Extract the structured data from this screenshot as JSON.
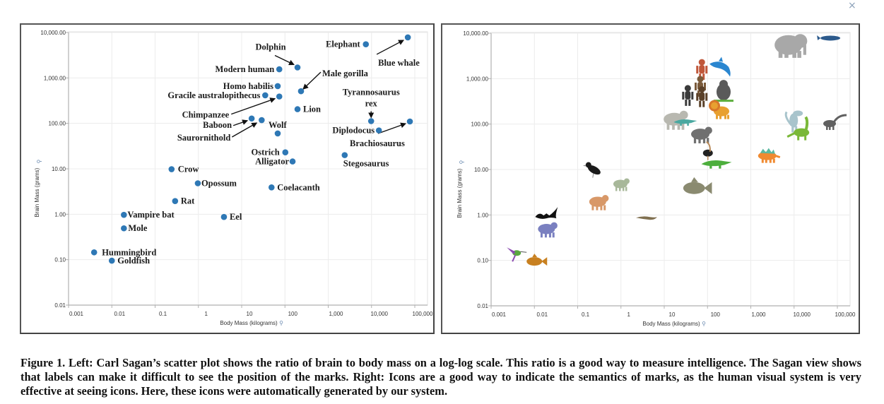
{
  "window": {
    "close_label": "×"
  },
  "caption": "Figure 1. Left: Carl Sagan’s scatter plot shows the ratio of brain to body mass on a log-log scale. This ratio is a good way to measure intelligence. The Sagan view shows that labels can make it difficult to see the position of the marks. Right: Icons are a good way to indicate the semantics of marks, as the human visual system is very effective at seeing icons. Here, these icons were automatically generated by our system.",
  "colors": {
    "point": "#2e78b5",
    "grid": "#ececec",
    "axis": "#b0b0b0",
    "frame": "#555555"
  },
  "chart_data": [
    {
      "type": "scatter",
      "panel": "left",
      "title": "",
      "xlabel": "Body Mass (kilograms)",
      "ylabel": "Brain Mass (grams)",
      "xscale": "log",
      "yscale": "log",
      "xlim": [
        0.001,
        150000
      ],
      "ylim": [
        0.01,
        10000
      ],
      "xticks": [
        0.001,
        0.01,
        0.1,
        1,
        10,
        100,
        1000,
        10000,
        100000
      ],
      "xtick_labels": [
        "0.001",
        "0.01",
        "0.1",
        "1",
        "10",
        "100",
        "1,000",
        "10,000",
        "100,000"
      ],
      "yticks": [
        0.01,
        0.1,
        1,
        10,
        100,
        1000,
        10000
      ],
      "ytick_labels": [
        "0.01",
        "0.10",
        "1.00",
        "10.00",
        "100.00",
        "1,000.00",
        "10,000.00"
      ],
      "grid": true,
      "points": [
        {
          "name": "Elephant",
          "x": 7400,
          "y": 5500
        },
        {
          "name": "Blue whale",
          "x": 69000,
          "y": 7800
        },
        {
          "name": "Dolphin",
          "x": 195,
          "y": 1700
        },
        {
          "name": "Modern human",
          "x": 74,
          "y": 1550
        },
        {
          "name": "Male gorilla",
          "x": 235,
          "y": 510
        },
        {
          "name": "Homo habilis",
          "x": 68,
          "y": 660
        },
        {
          "name": "Gracile australopithecus",
          "x": 35,
          "y": 415
        },
        {
          "name": "Chimpanzee",
          "x": 74,
          "y": 390
        },
        {
          "name": "Lion",
          "x": 195,
          "y": 205
        },
        {
          "name": "Baboon",
          "x": 17,
          "y": 128
        },
        {
          "name": "Saurornithold",
          "x": 29,
          "y": 118
        },
        {
          "name": "Wolf",
          "x": 68,
          "y": 60
        },
        {
          "name": "Tyrannosaurus rex",
          "x": 9800,
          "y": 112
        },
        {
          "name": "Diplodocus",
          "x": 14800,
          "y": 70
        },
        {
          "name": "Brachiosaurus",
          "x": 77000,
          "y": 110
        },
        {
          "name": "Ostrich",
          "x": 102,
          "y": 23
        },
        {
          "name": "Alligator",
          "x": 150,
          "y": 14.5
        },
        {
          "name": "Stegosaurus",
          "x": 2400,
          "y": 20
        },
        {
          "name": "Crow",
          "x": 0.24,
          "y": 9.8
        },
        {
          "name": "Opossum",
          "x": 0.97,
          "y": 4.8
        },
        {
          "name": "Coelacanth",
          "x": 49,
          "y": 3.9
        },
        {
          "name": "Rat",
          "x": 0.29,
          "y": 1.95
        },
        {
          "name": "Vampire bat",
          "x": 0.019,
          "y": 0.97
        },
        {
          "name": "Eel",
          "x": 3.9,
          "y": 0.87
        },
        {
          "name": "Mole",
          "x": 0.019,
          "y": 0.49
        },
        {
          "name": "Hummingbird",
          "x": 0.0039,
          "y": 0.145
        },
        {
          "name": "Goldfish",
          "x": 0.01,
          "y": 0.095
        }
      ],
      "labels": [
        {
          "text": "Elephant",
          "point": "Elephant"
        },
        {
          "text": "Blue whale",
          "point": "Blue whale",
          "arrow": true
        },
        {
          "text": "Dolphin",
          "point": "Dolphin",
          "arrow": true
        },
        {
          "text": "Modern human",
          "point": "Modern human"
        },
        {
          "text": "Male gorilla",
          "point": "Male gorilla",
          "arrow": true
        },
        {
          "text": "Homo habilis",
          "point": "Homo habilis"
        },
        {
          "text": "Gracile australopithecus",
          "point": "Gracile australopithecus"
        },
        {
          "text": "Chimpanzee",
          "point": "Chimpanzee",
          "arrow": true
        },
        {
          "text": "Baboon",
          "point": "Baboon",
          "arrow": true
        },
        {
          "text": "Saurornithold",
          "point": "Saurornithold",
          "arrow": true
        },
        {
          "text": "Lion",
          "point": "Lion"
        },
        {
          "text": "Wolf",
          "point": "Wolf"
        },
        {
          "text": "Tyrannosaurus",
          "point": "Tyrannosaurus rex",
          "arrow": true
        },
        {
          "text": "rex",
          "point": "Tyrannosaurus rex"
        },
        {
          "text": "Diplodocus",
          "point": "Diplodocus"
        },
        {
          "text": "Brachiosaurus",
          "point": "Brachiosaurus",
          "arrow": true
        },
        {
          "text": "Ostrich",
          "point": "Ostrich"
        },
        {
          "text": "Alligator",
          "point": "Alligator"
        },
        {
          "text": "Stegosaurus",
          "point": "Stegosaurus"
        },
        {
          "text": "Crow",
          "point": "Crow"
        },
        {
          "text": "Opossum",
          "point": "Opossum"
        },
        {
          "text": "Coelacanth",
          "point": "Coelacanth"
        },
        {
          "text": "Rat",
          "point": "Rat"
        },
        {
          "text": "Vampire bat",
          "point": "Vampire bat"
        },
        {
          "text": "Eel",
          "point": "Eel"
        },
        {
          "text": "Mole",
          "point": "Mole"
        },
        {
          "text": "Hummingbird",
          "point": "Hummingbird"
        },
        {
          "text": "Goldfish",
          "point": "Goldfish"
        }
      ]
    },
    {
      "type": "scatter",
      "panel": "right",
      "marks": "icons",
      "xlabel": "Body Mass (kilograms)",
      "ylabel": "Brain Mass (grams)",
      "xscale": "log",
      "yscale": "log",
      "xlim": [
        0.001,
        150000
      ],
      "ylim": [
        0.01,
        10000
      ],
      "xtick_labels": [
        "0.001",
        "0.01",
        "0.1",
        "1",
        "10",
        "100",
        "1,000",
        "10,000",
        "100,000"
      ],
      "ytick_labels": [
        "0.01",
        "0.10",
        "1.00",
        "10.00",
        "100.00",
        "1,000.00",
        "10,000.00"
      ],
      "grid": true,
      "icons": [
        {
          "name": "elephant",
          "color": "#a8a8a8",
          "x": 7400,
          "y": 5500
        },
        {
          "name": "blue-whale",
          "color": "#2c5a8c",
          "x": 69000,
          "y": 7800
        },
        {
          "name": "dolphin",
          "color": "#2a86d0",
          "x": 195,
          "y": 1700
        },
        {
          "name": "modern-human",
          "color": "#c0573a",
          "x": 74,
          "y": 1550
        },
        {
          "name": "male-gorilla",
          "color": "#5a5a5a",
          "x": 235,
          "y": 510
        },
        {
          "name": "homo-habilis",
          "color": "#7a5a3a",
          "x": 68,
          "y": 660
        },
        {
          "name": "gracile-australopithecus",
          "color": "#3a3a3a",
          "x": 35,
          "y": 415
        },
        {
          "name": "chimpanzee",
          "color": "#5a4028",
          "x": 74,
          "y": 390
        },
        {
          "name": "lion",
          "color": "#e8a030",
          "x": 195,
          "y": 205
        },
        {
          "name": "baboon",
          "color": "#b8b8b0",
          "x": 17,
          "y": 128
        },
        {
          "name": "saurornithold",
          "color": "#4aa8a0",
          "x": 29,
          "y": 118
        },
        {
          "name": "wolf",
          "color": "#707070",
          "x": 68,
          "y": 60
        },
        {
          "name": "tyrannosaurus-rex",
          "color": "#a8c4cc",
          "x": 9800,
          "y": 112
        },
        {
          "name": "diplodocus",
          "color": "#7ab838",
          "x": 14800,
          "y": 70
        },
        {
          "name": "brachiosaurus",
          "color": "#606060",
          "x": 77000,
          "y": 110
        },
        {
          "name": "ostrich",
          "color": "#222222",
          "x": 102,
          "y": 23
        },
        {
          "name": "alligator",
          "color": "#4cae3c",
          "x": 150,
          "y": 14.5
        },
        {
          "name": "stegosaurus",
          "color": "#f08a30",
          "x": 2400,
          "y": 20
        },
        {
          "name": "crow",
          "color": "#1a1a1a",
          "x": 0.24,
          "y": 9.8
        },
        {
          "name": "opossum",
          "color": "#a8b89a",
          "x": 0.97,
          "y": 4.8
        },
        {
          "name": "coelacanth",
          "color": "#8a8a70",
          "x": 49,
          "y": 3.9
        },
        {
          "name": "rat",
          "color": "#d89868",
          "x": 0.29,
          "y": 1.95
        },
        {
          "name": "vampire-bat",
          "color": "#111111",
          "x": 0.019,
          "y": 0.97
        },
        {
          "name": "eel",
          "color": "#807050",
          "x": 3.9,
          "y": 0.87
        },
        {
          "name": "mole",
          "color": "#7a80c0",
          "x": 0.019,
          "y": 0.49
        },
        {
          "name": "hummingbird",
          "color": "#5aa840",
          "x": 0.0039,
          "y": 0.145
        },
        {
          "name": "goldfish",
          "color": "#c88020",
          "x": 0.01,
          "y": 0.095
        }
      ]
    }
  ]
}
